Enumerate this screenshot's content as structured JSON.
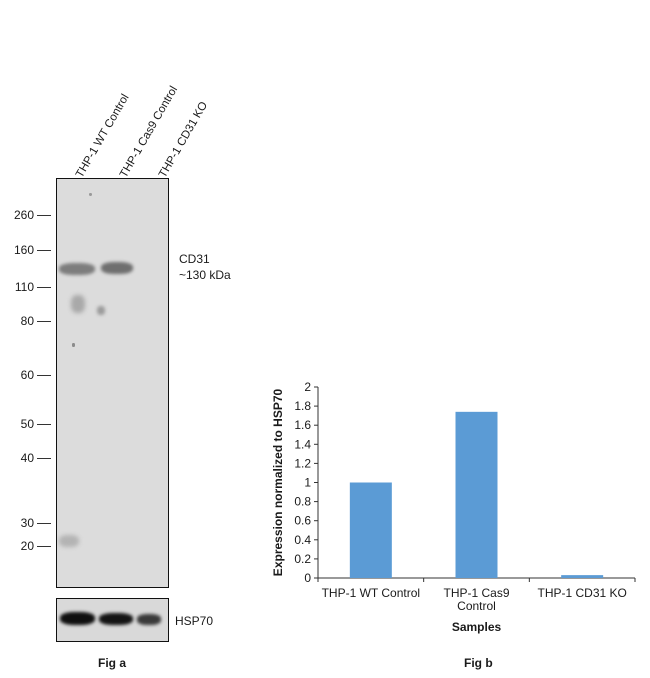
{
  "fig_a": {
    "lane_labels": [
      "THP-1 WT Control",
      "THP-1 Cas9 Control",
      "THP-1 CD31 KO"
    ],
    "mw_markers": [
      "260",
      "160",
      "110",
      "80",
      "60",
      "50",
      "40",
      "30",
      "20"
    ],
    "target_label_line1": "CD31",
    "target_label_line2": "~130 kDa",
    "loading_label": "HSP70",
    "caption": "Fig a"
  },
  "fig_b": {
    "caption": "Fig b"
  },
  "chart_data": {
    "type": "bar",
    "categories": [
      "THP-1 WT Control",
      "THP-1 Cas9 Control",
      "THP-1 CD31 KO"
    ],
    "category_lines": [
      [
        "THP-1 WT Control"
      ],
      [
        "THP-1 Cas9",
        "Control"
      ],
      [
        "THP-1 CD31 KO"
      ]
    ],
    "values": [
      1.0,
      1.74,
      0.03
    ],
    "title": "",
    "xlabel": "Samples",
    "ylabel": "Expression normalized to HSP70",
    "ylim": [
      0,
      2
    ],
    "yticks": [
      "0",
      "0.2",
      "0.4",
      "0.6",
      "0.8",
      "1",
      "1.2",
      "1.4",
      "1.6",
      "1.8",
      "2"
    ],
    "bar_color": "#5b9bd5",
    "grid": false,
    "legend": "none"
  }
}
